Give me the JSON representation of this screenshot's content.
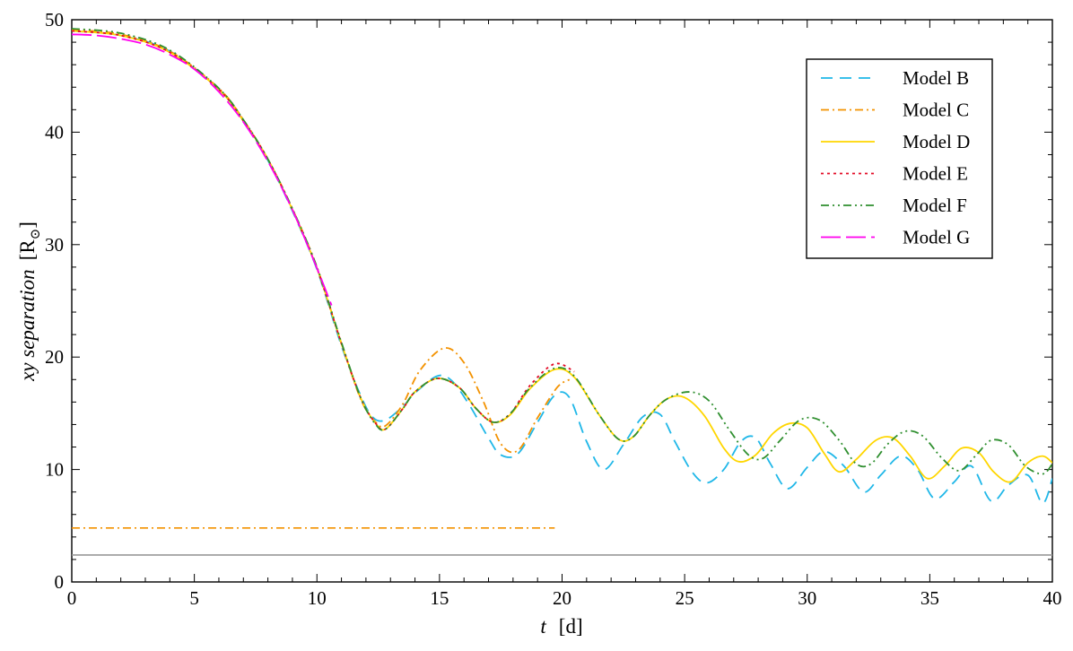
{
  "chart_data": {
    "type": "line",
    "title": "",
    "xlabel": {
      "var": "t",
      "unit": "[d]"
    },
    "ylabel": {
      "text": "xy  separation",
      "unit": "[R",
      "unit_sub": "⊙",
      "unit_close": "]"
    },
    "xlim": [
      0,
      40
    ],
    "ylim": [
      0,
      50
    ],
    "xticks": [
      0,
      5,
      10,
      15,
      20,
      25,
      30,
      35,
      40
    ],
    "yticks": [
      0,
      10,
      20,
      30,
      40,
      50
    ],
    "grid": false,
    "legend_position": "top-right",
    "series": [
      {
        "name": "Model B",
        "color": "#1fb7e8",
        "dash": "13,8",
        "x": [
          0,
          2,
          4,
          6,
          7,
          8,
          9,
          10,
          11,
          11.8,
          12.3,
          12.8,
          13.5,
          14,
          14.9,
          15.5,
          16.2,
          17.0,
          17.5,
          18.2,
          19.0,
          19.7,
          20.3,
          21.0,
          21.7,
          22.5,
          23.3,
          24.0,
          24.6,
          25.3,
          25.9,
          26.6,
          27.3,
          27.9,
          28.5,
          29.2,
          30.0,
          30.7,
          31.5,
          32.3,
          33.0,
          33.8,
          34.5,
          35.2,
          36.0,
          36.7,
          37.5,
          38.2,
          39.0,
          39.6,
          40
        ],
        "y": [
          49.0,
          48.6,
          47.2,
          43.8,
          41.0,
          37.5,
          33.0,
          27.8,
          21.0,
          16.5,
          14.6,
          14.4,
          15.6,
          16.8,
          18.3,
          17.9,
          15.8,
          12.8,
          11.3,
          11.4,
          14.2,
          16.6,
          16.4,
          12.5,
          10.0,
          12.2,
          14.7,
          14.9,
          12.5,
          9.8,
          8.8,
          10.0,
          12.5,
          12.8,
          10.5,
          8.3,
          10.2,
          11.6,
          10.3,
          8.0,
          9.5,
          11.2,
          10.0,
          7.4,
          8.9,
          10.3,
          7.2,
          8.6,
          9.5,
          7.0,
          9.2
        ]
      },
      {
        "name": "Model C",
        "color": "#f39200",
        "dash": "9,4,2,4",
        "x": [
          0,
          2,
          4,
          6,
          7,
          8,
          9,
          10,
          11,
          11.8,
          12.4,
          12.8,
          13.5,
          14.2,
          15.2,
          16.0,
          16.8,
          17.5,
          18.2,
          19.0,
          19.8,
          20.3
        ],
        "y": [
          49.1,
          48.7,
          47.2,
          43.9,
          41.1,
          37.6,
          33.2,
          28.0,
          21.2,
          16.2,
          14.2,
          13.9,
          15.8,
          18.8,
          20.8,
          19.5,
          16.0,
          12.3,
          11.7,
          14.6,
          17.3,
          18.0
        ]
      },
      {
        "name": "Model D",
        "color": "#ffd600",
        "dash": "",
        "x": [
          0,
          2,
          4,
          6,
          7,
          8,
          9,
          10,
          11,
          11.8,
          12.4,
          12.8,
          13.5,
          14.0,
          14.9,
          15.8,
          16.5,
          17.2,
          17.9,
          18.7,
          19.7,
          20.5,
          21.5,
          22.3,
          22.9,
          23.6,
          24.3,
          25.0,
          25.8,
          26.6,
          27.2,
          27.9,
          28.6,
          29.3,
          30.0,
          30.7,
          31.3,
          32.0,
          32.8,
          33.5,
          34.2,
          34.9,
          35.6,
          36.3,
          37.0,
          37.6,
          38.3,
          39.0,
          39.6,
          40
        ],
        "y": [
          49.0,
          48.6,
          47.1,
          43.8,
          41.0,
          37.6,
          33.1,
          27.9,
          21.2,
          16.3,
          14.1,
          13.6,
          15.4,
          16.9,
          18.1,
          17.3,
          15.4,
          14.2,
          14.9,
          17.2,
          18.9,
          18.2,
          14.9,
          12.7,
          12.9,
          14.9,
          16.3,
          16.4,
          14.8,
          11.9,
          10.7,
          11.3,
          13.2,
          14.1,
          13.7,
          11.4,
          9.8,
          10.9,
          12.6,
          12.8,
          11.2,
          9.2,
          10.3,
          11.9,
          11.5,
          9.8,
          8.9,
          10.6,
          11.2,
          10.6
        ]
      },
      {
        "name": "Model E",
        "color": "#e30b26",
        "dash": "3,4",
        "x": [
          0,
          2,
          4,
          6,
          7,
          8,
          9,
          10,
          11,
          11.8,
          12.4,
          12.8,
          13.5,
          14.0,
          14.9,
          15.8,
          16.5,
          17.2,
          17.9,
          18.7,
          19.7,
          20.5
        ],
        "y": [
          49.0,
          48.6,
          47.1,
          43.8,
          41.0,
          37.6,
          33.1,
          27.9,
          21.2,
          16.3,
          14.1,
          13.6,
          15.4,
          16.9,
          18.1,
          17.3,
          15.4,
          14.2,
          15.0,
          17.5,
          19.4,
          18.7
        ]
      },
      {
        "name": "Model F",
        "color": "#2f8f2f",
        "dash": "9,4,2,4,2,4",
        "x": [
          0,
          2,
          4,
          6,
          7,
          8,
          9,
          10,
          11,
          11.8,
          12.4,
          12.8,
          13.5,
          14.0,
          14.9,
          15.8,
          16.5,
          17.2,
          17.9,
          18.7,
          19.7,
          20.5,
          21.5,
          22.3,
          22.9,
          23.6,
          24.3,
          25.2,
          26.0,
          26.8,
          27.6,
          28.2,
          28.9,
          29.7,
          30.5,
          31.3,
          32.0,
          32.6,
          33.3,
          34.0,
          34.7,
          35.5,
          36.2,
          36.9,
          37.5,
          38.2,
          38.9,
          39.6,
          40
        ],
        "y": [
          49.2,
          48.8,
          47.3,
          43.9,
          41.1,
          37.6,
          33.2,
          28.0,
          21.3,
          16.3,
          14.0,
          13.6,
          15.4,
          16.9,
          18.1,
          17.3,
          15.4,
          14.2,
          15.0,
          17.3,
          19.0,
          18.3,
          14.9,
          12.7,
          12.9,
          14.9,
          16.3,
          16.9,
          16.1,
          13.6,
          11.3,
          11.0,
          12.6,
          14.4,
          14.4,
          12.6,
          10.5,
          10.5,
          12.3,
          13.4,
          13.0,
          11.0,
          9.9,
          11.3,
          12.6,
          12.2,
          10.3,
          9.6,
          10.5
        ]
      },
      {
        "name": "Model G",
        "color": "#ff00ee",
        "dash": "22,6",
        "x": [
          0,
          1,
          2,
          3,
          4,
          5,
          6,
          7,
          8,
          9,
          10,
          10.6
        ],
        "y": [
          48.7,
          48.6,
          48.3,
          47.8,
          46.9,
          45.6,
          43.6,
          40.9,
          37.4,
          33.1,
          27.9,
          24.6
        ]
      }
    ],
    "reference_lines": [
      {
        "y": 4.8,
        "x_start": 0,
        "x_end": 19.7,
        "color": "#f39200",
        "dash": "9,4,2,4"
      },
      {
        "y": 2.4,
        "x_start": 0,
        "x_end": 40,
        "color": "#999999",
        "dash": ""
      }
    ]
  }
}
